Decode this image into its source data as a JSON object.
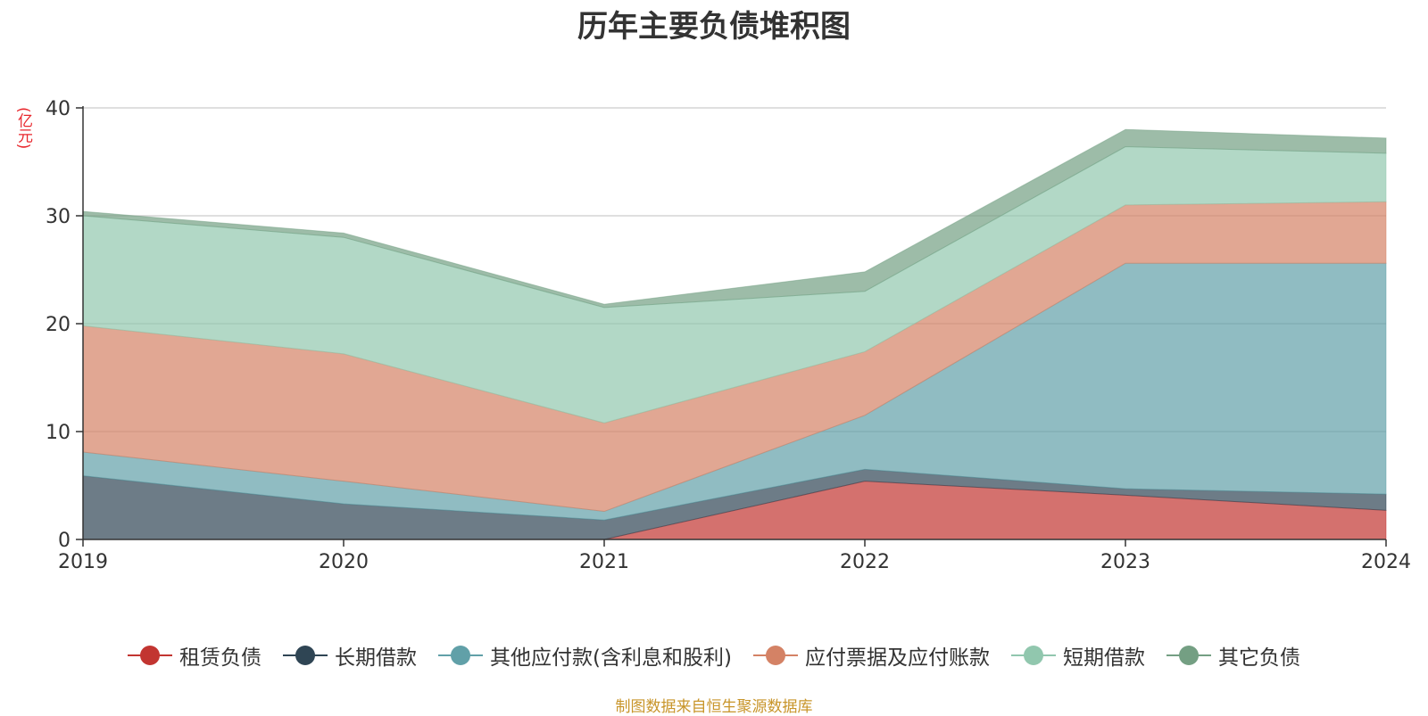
{
  "chart_data": {
    "type": "area",
    "stacked": true,
    "title": "历年主要负债堆积图",
    "y_unit": "(亿元)",
    "x": [
      "2019",
      "2020",
      "2021",
      "2022",
      "2023",
      "2024"
    ],
    "ylim": [
      0,
      40
    ],
    "yticks": [
      "0",
      "10",
      "20",
      "30",
      "40"
    ],
    "grid": true,
    "legend_position": "bottom",
    "series": [
      {
        "name": "租赁负债",
        "color": "#c23531",
        "values": [
          0,
          0,
          0,
          5.4,
          4.1,
          2.7
        ]
      },
      {
        "name": "长期借款",
        "color": "#2f4554",
        "values": [
          5.9,
          3.3,
          1.8,
          1.1,
          0.6,
          1.5
        ]
      },
      {
        "name": "其他应付款(含利息和股利)",
        "color": "#61a0a8",
        "values": [
          2.2,
          2.1,
          0.8,
          5.0,
          20.9,
          21.4
        ]
      },
      {
        "name": "应付票据及应付账款",
        "color": "#d48265",
        "values": [
          11.7,
          11.8,
          8.2,
          5.9,
          5.4,
          5.7
        ]
      },
      {
        "name": "短期借款",
        "color": "#91c7ae",
        "values": [
          10.2,
          10.8,
          10.7,
          5.6,
          5.4,
          4.5
        ]
      },
      {
        "name": "其它负债",
        "color": "#749f83",
        "values": [
          0.4,
          0.4,
          0.3,
          1.8,
          1.6,
          1.4
        ]
      }
    ]
  },
  "footer": {
    "source": "制图数据来自恒生聚源数据库"
  }
}
